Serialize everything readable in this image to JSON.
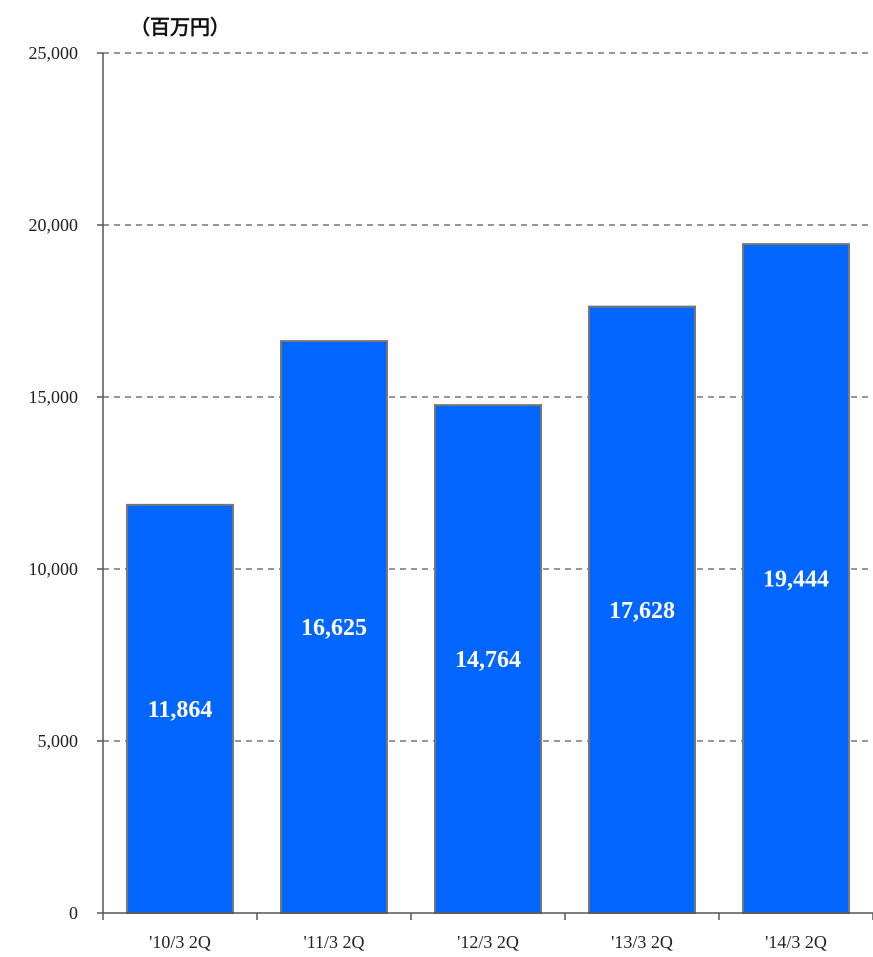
{
  "chart_data": {
    "type": "bar",
    "unit_label": "（百万円）",
    "title": "",
    "xlabel": "",
    "ylabel": "",
    "categories": [
      "'10/3 2Q",
      "'11/3 2Q",
      "'12/3 2Q",
      "'13/3 2Q",
      "'14/3 2Q"
    ],
    "values": [
      11864,
      16625,
      14764,
      17628,
      19444
    ],
    "value_labels": [
      "11,864",
      "16,625",
      "14,764",
      "17,628",
      "19,444"
    ],
    "ylim": [
      0,
      25000
    ],
    "yticks": [
      0,
      5000,
      10000,
      15000,
      20000,
      25000
    ],
    "ytick_labels": [
      "0",
      "5,000",
      "10,000",
      "15,000",
      "20,000",
      "25,000"
    ],
    "grid": true,
    "bar_color": "#0066ff",
    "bar_edge_color": "#777777"
  }
}
